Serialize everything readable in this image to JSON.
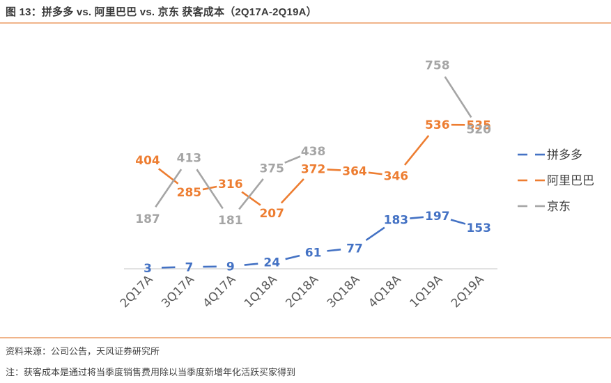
{
  "header": {
    "title": "图 13：拼多多  vs.  阿里巴巴  vs.  京东  获客成本（2Q17A-2Q19A）"
  },
  "footer": {
    "source": "资料来源：公司公告，天风证券研究所",
    "note": "注：获客成本是通过将当季度销售费用除以当季度新增年化活跃买家得到"
  },
  "chart_data": {
    "type": "line",
    "title": "拼多多 vs. 阿里巴巴 vs. 京东 获客成本（2Q17A-2Q19A）",
    "xlabel": "",
    "ylabel": "",
    "categories": [
      "2Q17A",
      "3Q17A",
      "4Q17A",
      "1Q18A",
      "2Q18A",
      "3Q18A",
      "4Q18A",
      "1Q19A",
      "2Q19A"
    ],
    "ylim": [
      0,
      800
    ],
    "grid": false,
    "legend_position": "right",
    "series": [
      {
        "name": "拼多多",
        "color": "#4472c4",
        "values": [
          3,
          7,
          9,
          24,
          61,
          77,
          183,
          197,
          153
        ]
      },
      {
        "name": "阿里巴巴",
        "color": "#ed7d31",
        "values": [
          404,
          285,
          316,
          207,
          372,
          364,
          346,
          536,
          535
        ]
      },
      {
        "name": "京东",
        "color": "#a5a5a5",
        "values": [
          187,
          413,
          181,
          375,
          438,
          null,
          null,
          758,
          520
        ]
      }
    ]
  }
}
